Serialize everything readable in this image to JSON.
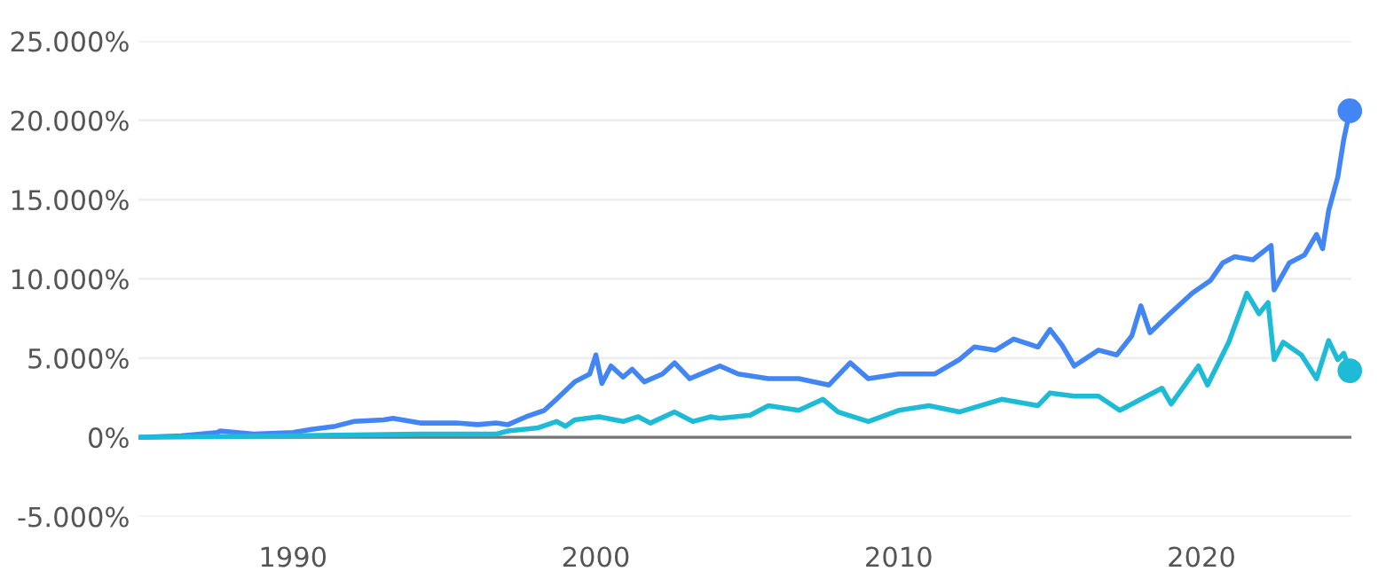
{
  "chart_data": {
    "type": "line",
    "grid": "y",
    "legend": false,
    "xlim": [
      1984.9,
      2024.95
    ],
    "xticks": [
      1990,
      2000,
      2010,
      2020
    ],
    "ylim": [
      -5000,
      25000
    ],
    "yticks": [
      {
        "value": -5000,
        "label": "-5.000%"
      },
      {
        "value": 0,
        "label": "0%"
      },
      {
        "value": 5000,
        "label": "5.000%"
      },
      {
        "value": 10000,
        "label": "10.000%"
      },
      {
        "value": 15000,
        "label": "15.000%"
      },
      {
        "value": 20000,
        "label": "20.000%"
      },
      {
        "value": 25000,
        "label": "25.000%"
      }
    ],
    "ref_lines": [
      {
        "axis": "y",
        "value": 0,
        "color": "#757575"
      }
    ],
    "series": [
      {
        "color": "#4285f4",
        "x": [
          1984.9,
          1986.3,
          1987.5,
          1987.6,
          1988.7,
          1990,
          1990.6,
          1991.4,
          1992,
          1993,
          1993.3,
          1994.2,
          1995.4,
          1996.1,
          1996.7,
          1997.1,
          1997.7,
          1998.3,
          1998.7,
          1999.3,
          1999.8,
          2000.0,
          2000.2,
          2000.5,
          2000.9,
          2001.2,
          2001.6,
          2002.2,
          2002.6,
          2003.1,
          2003.6,
          2004.1,
          2004.7,
          2005.7,
          2006.7,
          2007.7,
          2008.4,
          2009.0,
          2010.0,
          2011.2,
          2012.0,
          2012.5,
          2013.2,
          2013.8,
          2014.6,
          2015.0,
          2015.4,
          2015.8,
          2016.6,
          2017.2,
          2017.7,
          2018.0,
          2018.3,
          2018.9,
          2019.7,
          2020.3,
          2020.7,
          2021.1,
          2021.7,
          2022.3,
          2022.4,
          2022.9,
          2023.4,
          2023.8,
          2024.0,
          2024.2,
          2024.5,
          2024.7,
          2024.9
        ],
        "values": [
          0,
          100,
          300,
          400,
          200,
          300,
          500,
          700,
          1000,
          1100,
          1200,
          900,
          900,
          800,
          900,
          800,
          1300,
          1700,
          2400,
          3500,
          4000,
          5200,
          3400,
          4500,
          3800,
          4300,
          3500,
          4000,
          4700,
          3700,
          4100,
          4500,
          4000,
          3700,
          3700,
          3300,
          4700,
          3700,
          4000,
          4000,
          4900,
          5700,
          5500,
          6200,
          5700,
          6800,
          5800,
          4500,
          5500,
          5200,
          6400,
          8300,
          6600,
          7700,
          9100,
          9900,
          11000,
          11400,
          11200,
          12100,
          9300,
          11000,
          11500,
          12800,
          11900,
          14300,
          16400,
          18800,
          20600
        ]
      },
      {
        "color": "#1ebbd7",
        "x": [
          1984.9,
          1990.3,
          1994.2,
          1996.7,
          1997.1,
          1998.1,
          1998.7,
          1999.0,
          1999.3,
          2000.1,
          2000.9,
          2001.4,
          2001.8,
          2002.6,
          2003.2,
          2003.8,
          2004.1,
          2005.1,
          2005.7,
          2006.7,
          2007.5,
          2008.0,
          2009.0,
          2010.0,
          2011.0,
          2012.0,
          2013.4,
          2014.6,
          2015.0,
          2015.8,
          2016.6,
          2017.3,
          2017.9,
          2018.7,
          2019.0,
          2019.6,
          2019.9,
          2020.2,
          2020.9,
          2021.5,
          2021.9,
          2022.2,
          2022.4,
          2022.7,
          2023.3,
          2023.8,
          2024.2,
          2024.5,
          2024.7,
          2024.9
        ],
        "values": [
          0,
          100,
          200,
          200,
          400,
          600,
          1000,
          700,
          1100,
          1300,
          1000,
          1300,
          900,
          1600,
          1000,
          1300,
          1200,
          1400,
          2000,
          1700,
          2400,
          1600,
          1000,
          1700,
          2000,
          1600,
          2400,
          2000,
          2800,
          2600,
          2600,
          1700,
          2300,
          3100,
          2100,
          3700,
          4500,
          3300,
          6000,
          9100,
          7800,
          8500,
          4900,
          6000,
          5200,
          3700,
          6100,
          4900,
          5300,
          4200
        ]
      },
      {
        "type": "scatter",
        "marker": "circle",
        "color": "#4285f4",
        "x": [
          2024.9
        ],
        "values": [
          20600
        ]
      },
      {
        "type": "scatter",
        "marker": "circle",
        "color": "#1ebbd7",
        "x": [
          2024.9
        ],
        "values": [
          4200
        ]
      }
    ]
  }
}
